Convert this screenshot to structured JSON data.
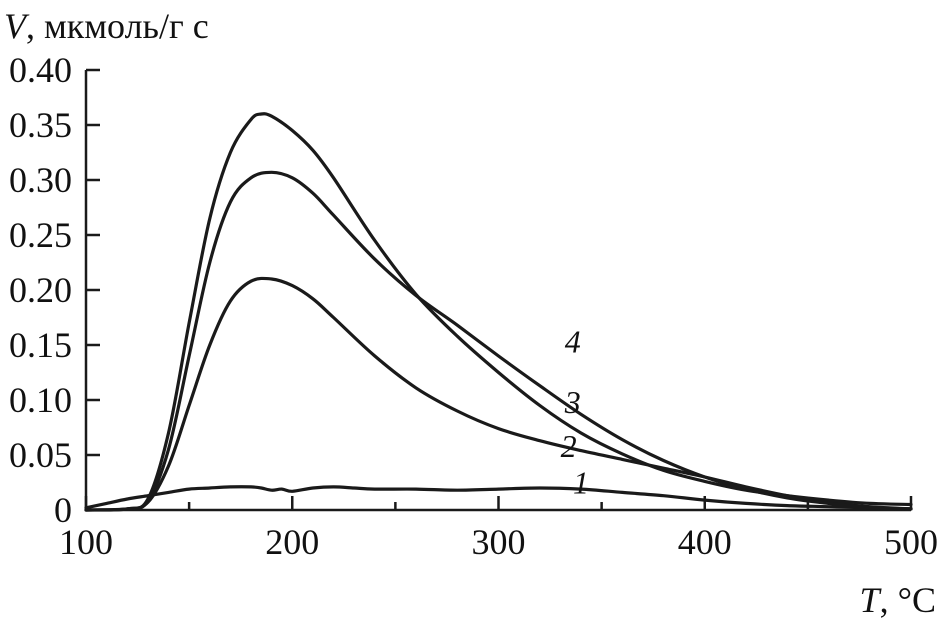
{
  "chart_data": {
    "type": "line",
    "ylabel_var": "V",
    "ylabel_unit": ", мкмоль/г с",
    "xlabel_var": "T",
    "xlabel_unit": ", °C",
    "xlim": [
      100,
      500
    ],
    "ylim": [
      0,
      0.4
    ],
    "x_ticks": [
      "100",
      "200",
      "300",
      "400",
      "500"
    ],
    "y_ticks": [
      "0",
      "0.05",
      "0.10",
      "0.15",
      "0.20",
      "0.25",
      "0.30",
      "0.35",
      "0.40"
    ],
    "grid": false,
    "series": [
      {
        "name": "1",
        "x": [
          100,
          110,
          120,
          130,
          140,
          150,
          160,
          170,
          180,
          185,
          190,
          195,
          200,
          210,
          220,
          230,
          240,
          260,
          280,
          300,
          320,
          340,
          360,
          380,
          400,
          420,
          440,
          460,
          480,
          500
        ],
        "y": [
          0.002,
          0.006,
          0.01,
          0.013,
          0.016,
          0.019,
          0.02,
          0.021,
          0.021,
          0.02,
          0.018,
          0.019,
          0.017,
          0.02,
          0.021,
          0.02,
          0.019,
          0.019,
          0.018,
          0.019,
          0.02,
          0.019,
          0.016,
          0.013,
          0.009,
          0.006,
          0.004,
          0.003,
          0.002,
          0.001
        ]
      },
      {
        "name": "2",
        "x": [
          100,
          120,
          130,
          140,
          150,
          160,
          170,
          180,
          190,
          200,
          210,
          220,
          240,
          260,
          280,
          300,
          320,
          340,
          360,
          380,
          400,
          420,
          440,
          460,
          480,
          500
        ],
        "y": [
          0,
          0.001,
          0.007,
          0.04,
          0.095,
          0.15,
          0.19,
          0.208,
          0.21,
          0.204,
          0.192,
          0.175,
          0.14,
          0.111,
          0.09,
          0.074,
          0.063,
          0.054,
          0.046,
          0.038,
          0.03,
          0.021,
          0.013,
          0.007,
          0.003,
          0.001
        ]
      },
      {
        "name": "3",
        "x": [
          100,
          120,
          130,
          140,
          150,
          160,
          170,
          180,
          190,
          200,
          210,
          220,
          240,
          260,
          280,
          300,
          320,
          340,
          360,
          380,
          400,
          420,
          440,
          460,
          480,
          500
        ],
        "y": [
          0,
          0.001,
          0.008,
          0.055,
          0.14,
          0.225,
          0.28,
          0.302,
          0.307,
          0.302,
          0.288,
          0.268,
          0.228,
          0.195,
          0.168,
          0.14,
          0.113,
          0.087,
          0.064,
          0.045,
          0.03,
          0.019,
          0.011,
          0.006,
          0.002,
          0.001
        ]
      },
      {
        "name": "4",
        "x": [
          100,
          120,
          130,
          140,
          150,
          160,
          170,
          180,
          185,
          190,
          200,
          210,
          220,
          240,
          260,
          280,
          300,
          320,
          340,
          360,
          380,
          400,
          420,
          440,
          460,
          480,
          500
        ],
        "y": [
          0,
          0.001,
          0.01,
          0.07,
          0.17,
          0.265,
          0.325,
          0.355,
          0.36,
          0.358,
          0.345,
          0.327,
          0.302,
          0.245,
          0.196,
          0.158,
          0.125,
          0.095,
          0.07,
          0.051,
          0.036,
          0.026,
          0.018,
          0.013,
          0.009,
          0.006,
          0.005
        ]
      }
    ],
    "curve_labels": [
      {
        "text": "1",
        "x": 340,
        "y": 0.025
      },
      {
        "text": "2",
        "x": 334,
        "y": 0.058
      },
      {
        "text": "3",
        "x": 336,
        "y": 0.098
      },
      {
        "text": "4",
        "x": 336,
        "y": 0.153
      }
    ]
  }
}
